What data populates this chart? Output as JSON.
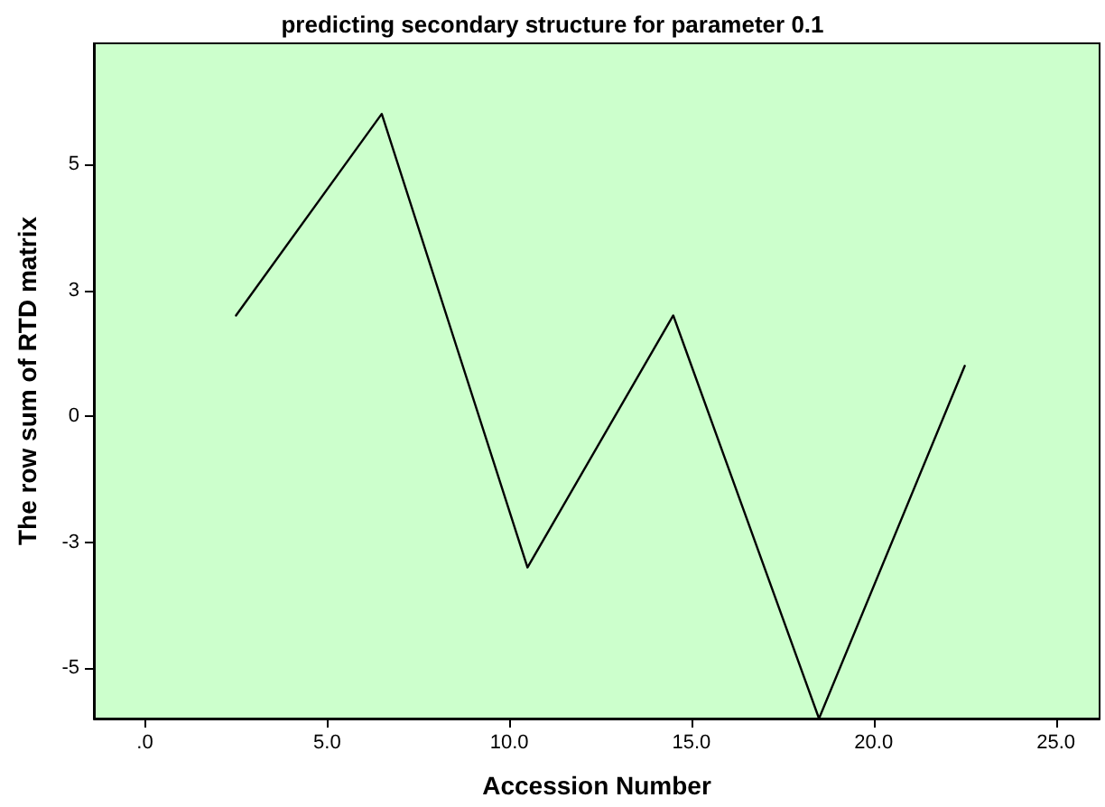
{
  "chart_data": {
    "type": "line",
    "title": "predicting secondary structure for parameter 0.1",
    "xlabel": "Accession Number",
    "ylabel": "The row sum of RTD matrix",
    "x": [
      2.5,
      6.5,
      10.5,
      14.5,
      18.5,
      22.5
    ],
    "series": [
      {
        "color": "#000000",
        "values": [
          2.0,
          6.0,
          -3.0,
          2.0,
          -6.0,
          1.0
        ]
      }
    ],
    "xlim": [
      -1.4,
      26.2
    ],
    "xticks": [
      {
        "value": 0,
        "label": ".0"
      },
      {
        "value": 5,
        "label": "5.0"
      },
      {
        "value": 10,
        "label": "10.0"
      },
      {
        "value": 15,
        "label": "15.0"
      },
      {
        "value": 20,
        "label": "20.0"
      },
      {
        "value": 25,
        "label": "25.0"
      }
    ],
    "ylim": [
      -6,
      7.4
    ],
    "yticks": [
      {
        "value": -5,
        "label": "-5"
      },
      {
        "value": -2.5,
        "label": "-3"
      },
      {
        "value": 0,
        "label": "0"
      },
      {
        "value": 2.5,
        "label": "3"
      },
      {
        "value": 5,
        "label": "5"
      }
    ],
    "grid": false,
    "marker": "none",
    "line_style": "solid"
  }
}
